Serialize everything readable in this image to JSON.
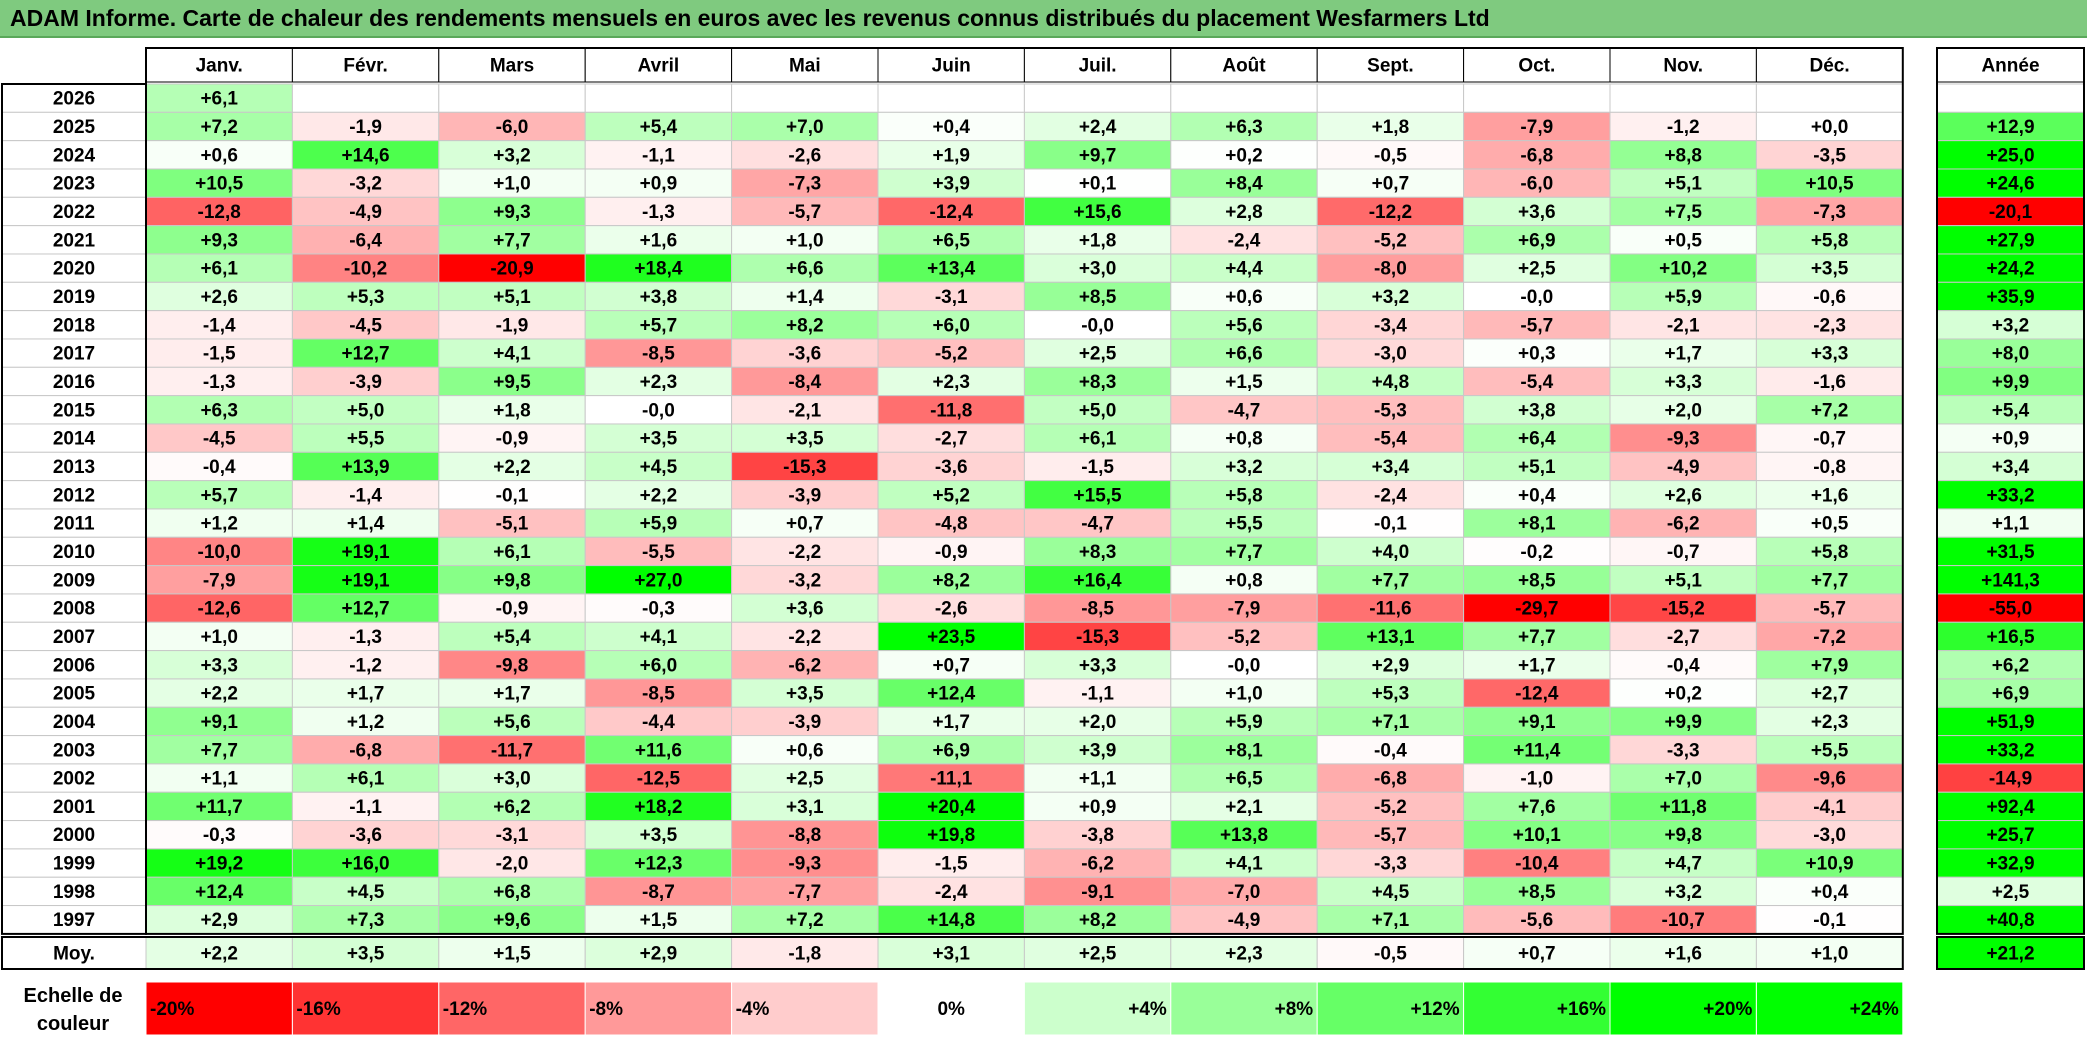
{
  "title": "ADAM Informe. Carte de chaleur des rendements mensuels en euros avec les revenus connus distribués du placement Wesfarmers Ltd",
  "chart_data": {
    "type": "heatmap",
    "title": "ADAM Informe. Carte de chaleur des rendements mensuels en euros avec les revenus connus distribués du placement Wesfarmers Ltd",
    "months": [
      "Janv.",
      "Févr.",
      "Mars",
      "Avril",
      "Mai",
      "Juin",
      "Juil.",
      "Août",
      "Sept.",
      "Oct.",
      "Nov.",
      "Déc."
    ],
    "year_header": "Année",
    "rows": [
      {
        "year": "2026",
        "values": [
          "+6,1",
          "",
          "",
          "",
          "",
          "",
          "",
          "",
          "",
          "",
          "",
          ""
        ],
        "annual": ""
      },
      {
        "year": "2025",
        "values": [
          "+7,2",
          "-1,9",
          "-6,0",
          "+5,4",
          "+7,0",
          "+0,4",
          "+2,4",
          "+6,3",
          "+1,8",
          "-7,9",
          "-1,2",
          "+0,0"
        ],
        "annual": "+12,9"
      },
      {
        "year": "2024",
        "values": [
          "+0,6",
          "+14,6",
          "+3,2",
          "-1,1",
          "-2,6",
          "+1,9",
          "+9,7",
          "+0,2",
          "-0,5",
          "-6,8",
          "+8,8",
          "-3,5"
        ],
        "annual": "+25,0"
      },
      {
        "year": "2023",
        "values": [
          "+10,5",
          "-3,2",
          "+1,0",
          "+0,9",
          "-7,3",
          "+3,9",
          "+0,1",
          "+8,4",
          "+0,7",
          "-6,0",
          "+5,1",
          "+10,5"
        ],
        "annual": "+24,6"
      },
      {
        "year": "2022",
        "values": [
          "-12,8",
          "-4,9",
          "+9,3",
          "-1,3",
          "-5,7",
          "-12,4",
          "+15,6",
          "+2,8",
          "-12,2",
          "+3,6",
          "+7,5",
          "-7,3"
        ],
        "annual": "-20,1"
      },
      {
        "year": "2021",
        "values": [
          "+9,3",
          "-6,4",
          "+7,7",
          "+1,6",
          "+1,0",
          "+6,5",
          "+1,8",
          "-2,4",
          "-5,2",
          "+6,9",
          "+0,5",
          "+5,8"
        ],
        "annual": "+27,9"
      },
      {
        "year": "2020",
        "values": [
          "+6,1",
          "-10,2",
          "-20,9",
          "+18,4",
          "+6,6",
          "+13,4",
          "+3,0",
          "+4,4",
          "-8,0",
          "+2,5",
          "+10,2",
          "+3,5"
        ],
        "annual": "+24,2"
      },
      {
        "year": "2019",
        "values": [
          "+2,6",
          "+5,3",
          "+5,1",
          "+3,8",
          "+1,4",
          "-3,1",
          "+8,5",
          "+0,6",
          "+3,2",
          "-0,0",
          "+5,9",
          "-0,6"
        ],
        "annual": "+35,9"
      },
      {
        "year": "2018",
        "values": [
          "-1,4",
          "-4,5",
          "-1,9",
          "+5,7",
          "+8,2",
          "+6,0",
          "-0,0",
          "+5,6",
          "-3,4",
          "-5,7",
          "-2,1",
          "-2,3"
        ],
        "annual": "+3,2"
      },
      {
        "year": "2017",
        "values": [
          "-1,5",
          "+12,7",
          "+4,1",
          "-8,5",
          "-3,6",
          "-5,2",
          "+2,5",
          "+6,6",
          "-3,0",
          "+0,3",
          "+1,7",
          "+3,3"
        ],
        "annual": "+8,0"
      },
      {
        "year": "2016",
        "values": [
          "-1,3",
          "-3,9",
          "+9,5",
          "+2,3",
          "-8,4",
          "+2,3",
          "+8,3",
          "+1,5",
          "+4,8",
          "-5,4",
          "+3,3",
          "-1,6"
        ],
        "annual": "+9,9"
      },
      {
        "year": "2015",
        "values": [
          "+6,3",
          "+5,0",
          "+1,8",
          "-0,0",
          "-2,1",
          "-11,8",
          "+5,0",
          "-4,7",
          "-5,3",
          "+3,8",
          "+2,0",
          "+7,2"
        ],
        "annual": "+5,4"
      },
      {
        "year": "2014",
        "values": [
          "-4,5",
          "+5,5",
          "-0,9",
          "+3,5",
          "+3,5",
          "-2,7",
          "+6,1",
          "+0,8",
          "-5,4",
          "+6,4",
          "-9,3",
          "-0,7"
        ],
        "annual": "+0,9"
      },
      {
        "year": "2013",
        "values": [
          "-0,4",
          "+13,9",
          "+2,2",
          "+4,5",
          "-15,3",
          "-3,6",
          "-1,5",
          "+3,2",
          "+3,4",
          "+5,1",
          "-4,9",
          "-0,8"
        ],
        "annual": "+3,4"
      },
      {
        "year": "2012",
        "values": [
          "+5,7",
          "-1,4",
          "-0,1",
          "+2,2",
          "-3,9",
          "+5,2",
          "+15,5",
          "+5,8",
          "-2,4",
          "+0,4",
          "+2,6",
          "+1,6"
        ],
        "annual": "+33,2"
      },
      {
        "year": "2011",
        "values": [
          "+1,2",
          "+1,4",
          "-5,1",
          "+5,9",
          "+0,7",
          "-4,8",
          "-4,7",
          "+5,5",
          "-0,1",
          "+8,1",
          "-6,2",
          "+0,5"
        ],
        "annual": "+1,1"
      },
      {
        "year": "2010",
        "values": [
          "-10,0",
          "+19,1",
          "+6,1",
          "-5,5",
          "-2,2",
          "-0,9",
          "+8,3",
          "+7,7",
          "+4,0",
          "-0,2",
          "-0,7",
          "+5,8"
        ],
        "annual": "+31,5"
      },
      {
        "year": "2009",
        "values": [
          "-7,9",
          "+19,1",
          "+9,8",
          "+27,0",
          "-3,2",
          "+8,2",
          "+16,4",
          "+0,8",
          "+7,7",
          "+8,5",
          "+5,1",
          "+7,7"
        ],
        "annual": "+141,3"
      },
      {
        "year": "2008",
        "values": [
          "-12,6",
          "+12,7",
          "-0,9",
          "-0,3",
          "+3,6",
          "-2,6",
          "-8,5",
          "-7,9",
          "-11,6",
          "-29,7",
          "-15,2",
          "-5,7"
        ],
        "annual": "-55,0"
      },
      {
        "year": "2007",
        "values": [
          "+1,0",
          "-1,3",
          "+5,4",
          "+4,1",
          "-2,2",
          "+23,5",
          "-15,3",
          "-5,2",
          "+13,1",
          "+7,7",
          "-2,7",
          "-7,2"
        ],
        "annual": "+16,5"
      },
      {
        "year": "2006",
        "values": [
          "+3,3",
          "-1,2",
          "-9,8",
          "+6,0",
          "-6,2",
          "+0,7",
          "+3,3",
          "-0,0",
          "+2,9",
          "+1,7",
          "-0,4",
          "+7,9"
        ],
        "annual": "+6,2"
      },
      {
        "year": "2005",
        "values": [
          "+2,2",
          "+1,7",
          "+1,7",
          "-8,5",
          "+3,5",
          "+12,4",
          "-1,1",
          "+1,0",
          "+5,3",
          "-12,4",
          "+0,2",
          "+2,7"
        ],
        "annual": "+6,9"
      },
      {
        "year": "2004",
        "values": [
          "+9,1",
          "+1,2",
          "+5,6",
          "-4,4",
          "-3,9",
          "+1,7",
          "+2,0",
          "+5,9",
          "+7,1",
          "+9,1",
          "+9,9",
          "+2,3"
        ],
        "annual": "+51,9"
      },
      {
        "year": "2003",
        "values": [
          "+7,7",
          "-6,8",
          "-11,7",
          "+11,6",
          "+0,6",
          "+6,9",
          "+3,9",
          "+8,1",
          "-0,4",
          "+11,4",
          "-3,3",
          "+5,5"
        ],
        "annual": "+33,2"
      },
      {
        "year": "2002",
        "values": [
          "+1,1",
          "+6,1",
          "+3,0",
          "-12,5",
          "+2,5",
          "-11,1",
          "+1,1",
          "+6,5",
          "-6,8",
          "-1,0",
          "+7,0",
          "-9,6"
        ],
        "annual": "-14,9"
      },
      {
        "year": "2001",
        "values": [
          "+11,7",
          "-1,1",
          "+6,2",
          "+18,2",
          "+3,1",
          "+20,4",
          "+0,9",
          "+2,1",
          "-5,2",
          "+7,6",
          "+11,8",
          "-4,1"
        ],
        "annual": "+92,4"
      },
      {
        "year": "2000",
        "values": [
          "-0,3",
          "-3,6",
          "-3,1",
          "+3,5",
          "-8,8",
          "+19,8",
          "-3,8",
          "+13,8",
          "-5,7",
          "+10,1",
          "+9,8",
          "-3,0"
        ],
        "annual": "+25,7"
      },
      {
        "year": "1999",
        "values": [
          "+19,2",
          "+16,0",
          "-2,0",
          "+12,3",
          "-9,3",
          "-1,5",
          "-6,2",
          "+4,1",
          "-3,3",
          "-10,4",
          "+4,7",
          "+10,9"
        ],
        "annual": "+32,9"
      },
      {
        "year": "1998",
        "values": [
          "+12,4",
          "+4,5",
          "+6,8",
          "-8,7",
          "-7,7",
          "-2,4",
          "-9,1",
          "-7,0",
          "+4,5",
          "+8,5",
          "+3,2",
          "+0,4"
        ],
        "annual": "+2,5"
      },
      {
        "year": "1997",
        "values": [
          "+2,9",
          "+7,3",
          "+9,6",
          "+1,5",
          "+7,2",
          "+14,8",
          "+8,2",
          "-4,9",
          "+7,1",
          "-5,6",
          "-10,7",
          "-0,1"
        ],
        "annual": "+40,8"
      }
    ],
    "average": {
      "label": "Moy.",
      "values": [
        "+2,2",
        "+3,5",
        "+1,5",
        "+2,9",
        "-1,8",
        "+3,1",
        "+2,5",
        "+2,3",
        "-0,5",
        "+0,7",
        "+1,6",
        "+1,0"
      ],
      "annual": "+21,2"
    },
    "scale": {
      "label_line1": "Echelle de",
      "label_line2": "couleur",
      "stops": [
        "-20%",
        "-16%",
        "-12%",
        "-8%",
        "-4%",
        "0%",
        "+4%",
        "+8%",
        "+12%",
        "+16%",
        "+20%",
        "+24%"
      ],
      "stop_values": [
        -20,
        -16,
        -12,
        -8,
        -4,
        0,
        4,
        8,
        12,
        16,
        20,
        24
      ],
      "negative_color": "#ff0000",
      "positive_color": "#00ff00",
      "neutral_color": "#ffffff"
    }
  }
}
